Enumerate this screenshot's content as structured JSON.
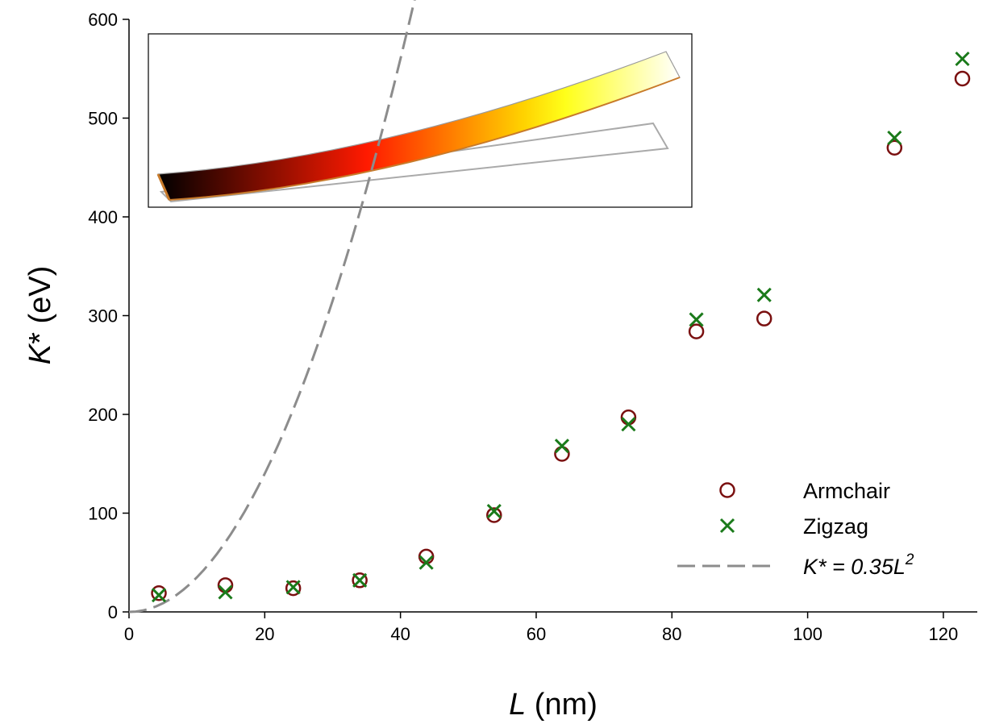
{
  "chart_data": {
    "type": "scatter",
    "title": "",
    "xlabel_var": "L",
    "xlabel_unit": " (nm)",
    "ylabel_var": "K",
    "ylabel_unit": "* (eV)",
    "xlim": [
      0,
      125
    ],
    "ylim": [
      0,
      600
    ],
    "xticks": [
      0,
      20,
      40,
      60,
      80,
      100,
      120
    ],
    "yticks": [
      0,
      100,
      200,
      300,
      400,
      500,
      600
    ],
    "grid": false,
    "legend_position": "bottom-right",
    "series": [
      {
        "name": "Armchair",
        "marker": "circle",
        "color": "#7a1010",
        "x": [
          4.4,
          14.2,
          24.2,
          34.0,
          43.8,
          53.8,
          63.8,
          73.6,
          83.6,
          93.6,
          112.8,
          122.8
        ],
        "y": [
          19,
          27,
          24,
          32,
          56,
          98,
          160,
          197,
          284,
          297,
          470,
          540
        ]
      },
      {
        "name": "Zigzag",
        "marker": "x",
        "color": "#1a7a1a",
        "x": [
          4.4,
          14.2,
          24.2,
          34.0,
          43.8,
          53.8,
          63.8,
          73.6,
          83.6,
          93.6,
          112.8,
          122.8
        ],
        "y": [
          17,
          20,
          25,
          32,
          50,
          102,
          168,
          190,
          296,
          321,
          480,
          560
        ]
      },
      {
        "name": "K* = 0.35L²",
        "type": "line",
        "style": "dashed",
        "color": "#8c8c8c",
        "coefficient": 0.35,
        "exponent": 2
      }
    ],
    "legend": {
      "armchair_label": "Armchair",
      "zigzag_label": "Zigzag",
      "fit_label_main": "K* = 0.35L",
      "fit_label_sup": "2"
    }
  }
}
